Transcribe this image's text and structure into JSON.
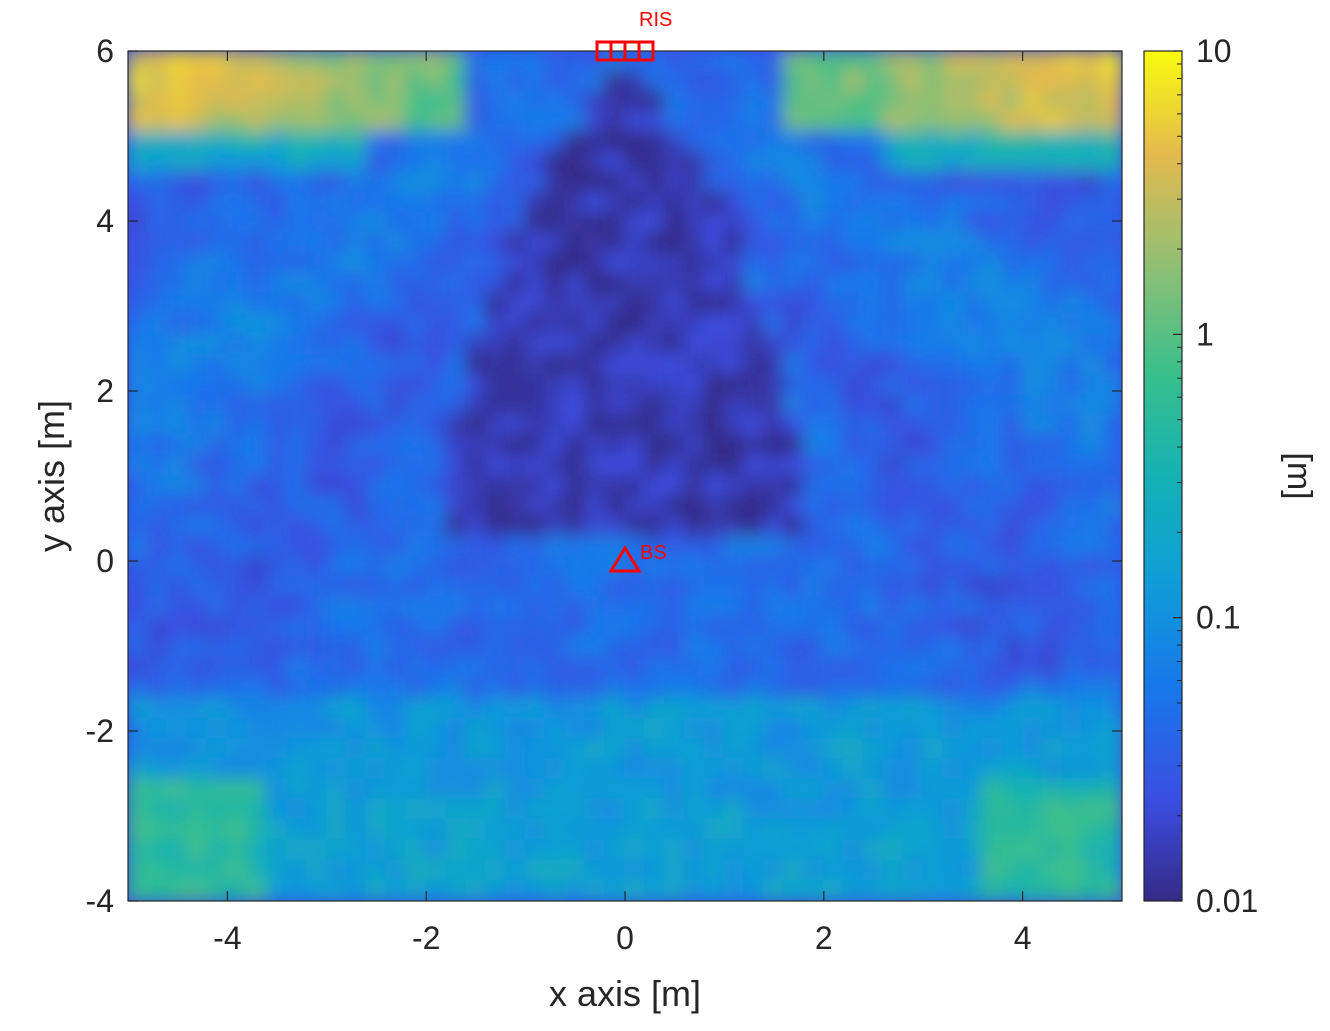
{
  "chart_data": {
    "type": "heatmap",
    "title": "",
    "xlabel": "x axis [m]",
    "ylabel": "y axis [m]",
    "xlim": [
      -5,
      5
    ],
    "ylim": [
      -4,
      6
    ],
    "x_ticks": [
      -4,
      -2,
      0,
      2,
      4
    ],
    "y_ticks": [
      -4,
      -2,
      0,
      2,
      4,
      6
    ],
    "x_tick_labels": [
      "-4",
      "-2",
      "0",
      "2",
      "4"
    ],
    "y_tick_labels": [
      "-4",
      "-2",
      "0",
      "2",
      "4",
      "6"
    ],
    "colorbar": {
      "label": "[m]",
      "scale": "log",
      "range": [
        0.01,
        10
      ],
      "ticks": [
        0.01,
        0.1,
        1,
        10
      ],
      "tick_labels": [
        "0.01",
        "0.1",
        "1",
        "10"
      ],
      "colormap": "parula"
    },
    "grid": false,
    "markers": [
      {
        "label": "RIS",
        "shape": "square-array",
        "x": 0,
        "y": 6,
        "color": "#ff0000"
      },
      {
        "label": "BS",
        "shape": "triangle",
        "x": 0,
        "y": 0,
        "color": "#ff0000"
      }
    ],
    "region_values": [
      {
        "region": "near RIS, |x|<1, y 1.5..5.5",
        "value": 0.015
      },
      {
        "region": "upper-left corner y 5..6",
        "value": 3.5
      },
      {
        "region": "upper-right corner y 5..6",
        "value": 4
      },
      {
        "region": "lower-left corner",
        "value": 0.6
      },
      {
        "region": "lower-right corner",
        "value": 0.5
      },
      {
        "region": "mid region",
        "value": 0.05
      }
    ]
  }
}
